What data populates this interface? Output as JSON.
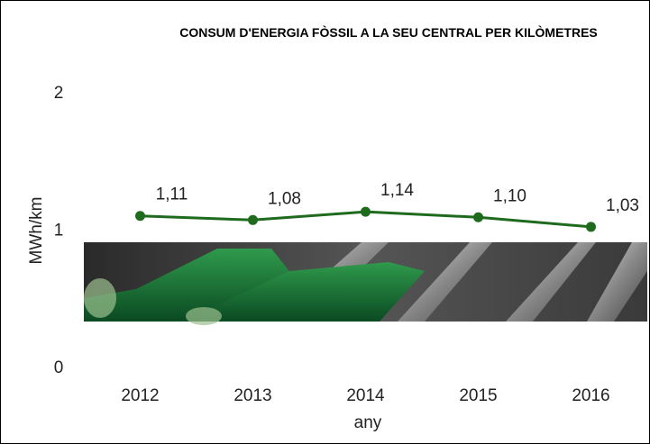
{
  "chart_data": {
    "type": "line",
    "title": "CONSUM D'ENERGIA FÒSSIL A LA SEU CENTRAL PER KILÒMETRES",
    "ylabel": "MWh/km",
    "xlabel": "any",
    "categories": [
      "2012",
      "2013",
      "2014",
      "2015",
      "2016"
    ],
    "values": [
      1.11,
      1.08,
      1.14,
      1.1,
      1.03
    ],
    "value_labels": [
      "1,11",
      "1,08",
      "1,14",
      "1,10",
      "1,03"
    ],
    "color": "#1e6b1e",
    "ylim": [
      0,
      2
    ],
    "yticks": [
      0,
      1,
      2
    ],
    "grid": false
  }
}
